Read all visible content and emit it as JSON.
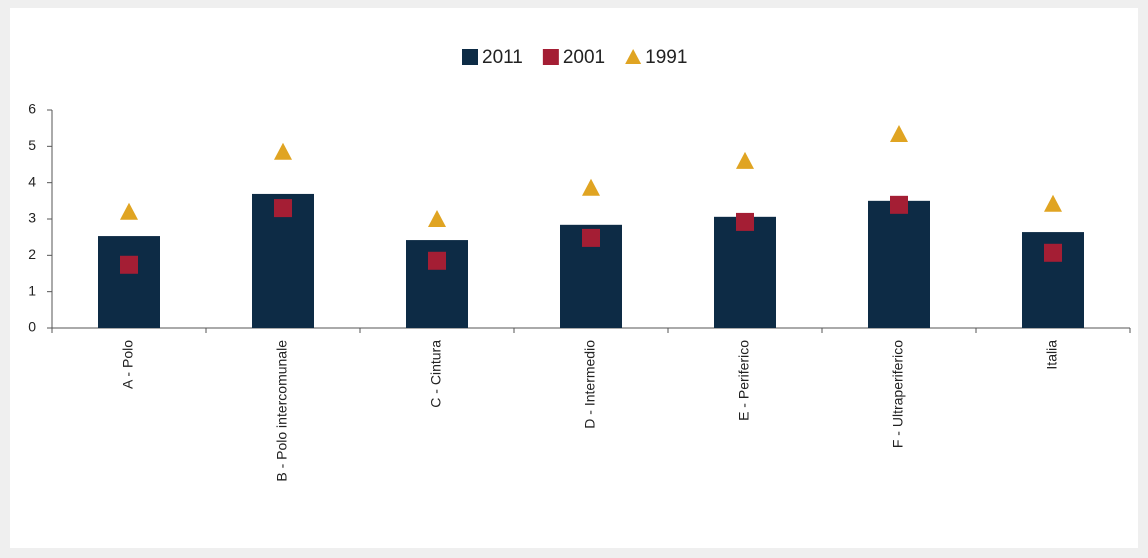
{
  "chart_data": {
    "type": "bar",
    "categories": [
      "A - Polo",
      "B - Polo intercomunale",
      "C - Cintura",
      "D - Intermedio",
      "E - Periferico",
      "F - Ultraperiferico",
      "Italia"
    ],
    "series": [
      {
        "name": "2011",
        "color": "#0d2b45",
        "marker": "bar",
        "values": [
          2.53,
          3.69,
          2.42,
          2.84,
          3.06,
          3.5,
          2.64
        ]
      },
      {
        "name": "2001",
        "color": "#a41e34",
        "marker": "square",
        "values": [
          1.74,
          3.3,
          1.85,
          2.48,
          2.92,
          3.39,
          2.07
        ]
      },
      {
        "name": "1991",
        "color": "#e0a422",
        "marker": "triangle",
        "values": [
          3.2,
          4.85,
          3.0,
          3.86,
          4.6,
          5.34,
          3.42
        ]
      }
    ],
    "ylim": [
      0,
      6
    ],
    "yticks": [
      0,
      1,
      2,
      3,
      4,
      5,
      6
    ],
    "grid": false,
    "legend": "top"
  }
}
